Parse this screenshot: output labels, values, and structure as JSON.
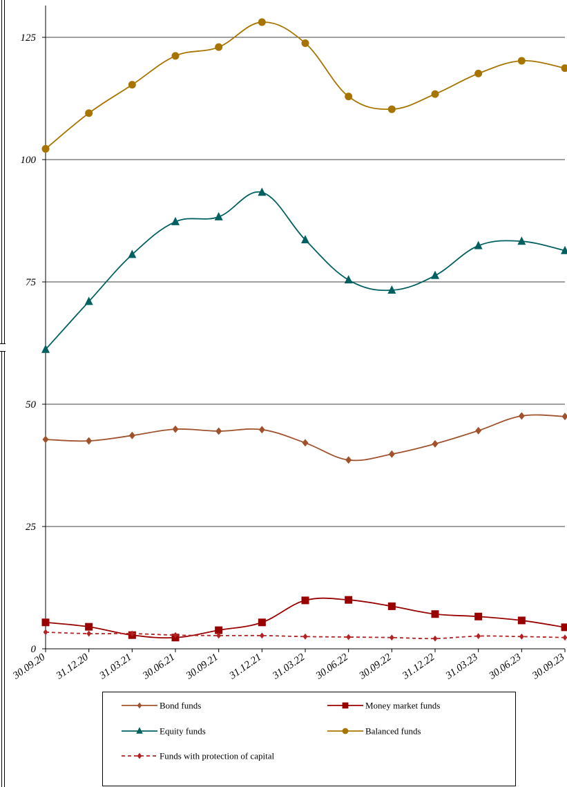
{
  "chart_data": {
    "type": "line",
    "title": "",
    "xlabel": "",
    "ylabel": "",
    "ylim": [
      0,
      125
    ],
    "yticks": [
      0,
      25,
      50,
      75,
      100,
      125
    ],
    "grid": "horizontal",
    "legend_position": "bottom",
    "categories": [
      "30.09.20",
      "31.12.20",
      "31.03.21",
      "30.06.21",
      "30.09.21",
      "31.12.21",
      "31.03.22",
      "30.06.22",
      "30.09.22",
      "31.12.22",
      "31.03.23",
      "30.06.23",
      "30.09.23"
    ],
    "series": [
      {
        "name": "Bond funds",
        "color": "#a0522d",
        "marker": "diamond",
        "dash": "solid",
        "values": [
          42.8,
          42.5,
          43.6,
          44.9,
          44.5,
          44.8,
          42.1,
          38.6,
          39.8,
          41.9,
          44.6,
          47.6,
          47.5
        ]
      },
      {
        "name": "Money market funds",
        "color": "#990000",
        "marker": "square",
        "dash": "solid",
        "values": [
          5.4,
          4.5,
          2.8,
          2.3,
          3.8,
          5.4,
          9.9,
          10.0,
          8.7,
          7.1,
          6.6,
          5.8,
          4.4
        ]
      },
      {
        "name": "Equity funds",
        "color": "#006060",
        "marker": "triangle",
        "dash": "solid",
        "values": [
          61.2,
          71.0,
          80.6,
          87.3,
          88.3,
          93.3,
          83.6,
          75.4,
          73.3,
          76.3,
          82.4,
          83.3,
          81.4
        ]
      },
      {
        "name": "Balanced funds",
        "color": "#a87400",
        "marker": "circle",
        "dash": "solid",
        "values": [
          102.2,
          109.5,
          115.3,
          121.2,
          123.0,
          128.1,
          123.8,
          112.9,
          110.3,
          113.4,
          117.6,
          120.2,
          118.7
        ]
      },
      {
        "name": "Funds with protection of capital",
        "color": "#b22222",
        "marker": "diamond",
        "dash": "dashed",
        "values": [
          3.4,
          3.1,
          3.1,
          2.8,
          2.7,
          2.7,
          2.5,
          2.4,
          2.3,
          2.1,
          2.6,
          2.5,
          2.3
        ]
      }
    ],
    "y_tick_labels": [
      "0",
      "25",
      "50",
      "75",
      "100",
      "125"
    ]
  }
}
